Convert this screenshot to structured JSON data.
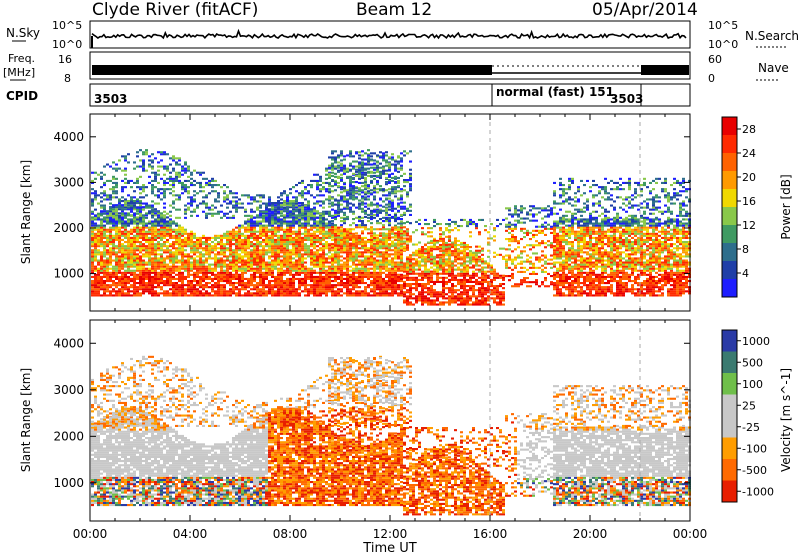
{
  "header": {
    "station": "Clyde River (fitACF)",
    "beam": "Beam 12",
    "date": "05/Apr/2014"
  },
  "strip_labels": {
    "nsky": "N.Sky",
    "nsky_ticks": [
      "10^5",
      "10^0"
    ],
    "nsearch": "N.Search",
    "nsearch_ticks": [
      "10^5",
      "10^0"
    ],
    "freq_top": "Freq.",
    "freq_unit": "[MHz]",
    "freq_ticks": [
      "16",
      "8"
    ],
    "nave": "Nave",
    "nave_ticks": [
      "60",
      "0"
    ],
    "cpid": "CPID",
    "cpid_segments": [
      {
        "start_hour": 0,
        "end_hour": 16,
        "label": "3503"
      },
      {
        "start_hour": 16,
        "end_hour": 22,
        "label": "normal (fast) 151"
      },
      {
        "start_hour": 22,
        "end_hour": 24,
        "label": "3503"
      }
    ]
  },
  "colors": {
    "power_scale": [
      "#1e1eff",
      "#1f3fa8",
      "#2e6e8c",
      "#3f9a62",
      "#89c84a",
      "#f0d800",
      "#ff9a00",
      "#ff6200",
      "#ff2a00",
      "#e80000"
    ],
    "velocity_scale": [
      "#2a3aa6",
      "#3a7a70",
      "#6fbf4a",
      "#c8c8c8",
      "#c8c8c8",
      "#ff9d00",
      "#ff6a00",
      "#e81e00"
    ]
  },
  "chart_data": [
    {
      "type": "heatmap",
      "title": "Power",
      "xlabel": "Time UT",
      "ylabel": "Slant Range [km]",
      "xlim_hours": [
        0,
        24
      ],
      "ylim_km": [
        180,
        4500
      ],
      "x_ticks": [
        "00:00",
        "04:00",
        "08:00",
        "12:00",
        "16:00",
        "20:00",
        "00:00"
      ],
      "y_ticks": [
        1000,
        2000,
        3000,
        4000
      ],
      "colorbar": {
        "label": "Power [dB]",
        "ticks": [
          4,
          8,
          12,
          16,
          20,
          24,
          28
        ],
        "range": [
          0,
          30
        ]
      }
    },
    {
      "type": "heatmap",
      "title": "Velocity",
      "xlabel": "Time UT",
      "ylabel": "Slant Range [km]",
      "xlim_hours": [
        0,
        24
      ],
      "ylim_km": [
        180,
        4500
      ],
      "x_ticks": [
        "00:00",
        "04:00",
        "08:00",
        "12:00",
        "16:00",
        "20:00",
        "00:00"
      ],
      "y_ticks": [
        1000,
        2000,
        3000,
        4000
      ],
      "colorbar": {
        "label": "Velocity [m s^-1]",
        "ticks": [
          "1000",
          "500",
          "100",
          "25",
          "-25",
          "-100",
          "-500",
          "-1000"
        ]
      }
    }
  ]
}
